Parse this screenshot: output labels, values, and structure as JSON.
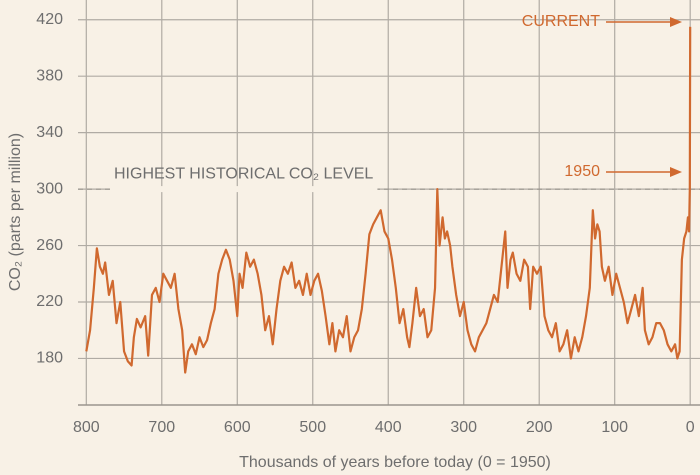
{
  "chart_data": {
    "type": "line",
    "y_label": "CO₂ (parts per million)",
    "x_label": "Thousands of years before today (0 = 1950)",
    "annotations": [
      "CURRENT",
      "1950",
      "HIGHEST HISTORICAL CO₂ LEVEL"
    ],
    "reference_line": 300,
    "xlim": [
      811,
      -13
    ],
    "ylim": [
      147,
      434
    ],
    "xticks": [
      800,
      700,
      600,
      500,
      400,
      300,
      200,
      100,
      0
    ],
    "yticks": [
      180,
      220,
      260,
      300,
      340,
      380,
      420
    ],
    "grid": true,
    "x": [
      800,
      795,
      790,
      786,
      782,
      778,
      775,
      770,
      765,
      760,
      755,
      750,
      745,
      740,
      737,
      733,
      728,
      722,
      718,
      713,
      708,
      703,
      698,
      693,
      688,
      683,
      678,
      673,
      669,
      665,
      660,
      655,
      650,
      645,
      640,
      635,
      630,
      625,
      620,
      615,
      610,
      605,
      600,
      597,
      593,
      588,
      583,
      578,
      573,
      568,
      563,
      558,
      553,
      548,
      543,
      538,
      533,
      528,
      523,
      518,
      513,
      508,
      503,
      498,
      493,
      488,
      483,
      478,
      474,
      470,
      465,
      460,
      455,
      450,
      445,
      440,
      435,
      430,
      425,
      420,
      415,
      410,
      405,
      400,
      395,
      390,
      385,
      380,
      375,
      372,
      368,
      363,
      358,
      353,
      348,
      343,
      338,
      335,
      332,
      328,
      325,
      322,
      318,
      315,
      310,
      305,
      300,
      295,
      290,
      285,
      280,
      275,
      270,
      265,
      260,
      255,
      250,
      245,
      242,
      238,
      235,
      230,
      225,
      220,
      215,
      212,
      208,
      203,
      198,
      193,
      188,
      183,
      178,
      173,
      168,
      163,
      158,
      153,
      148,
      143,
      138,
      133,
      129,
      126,
      123,
      120,
      117,
      113,
      108,
      103,
      98,
      93,
      88,
      83,
      78,
      73,
      68,
      63,
      60,
      55,
      50,
      45,
      40,
      35,
      30,
      25,
      20,
      17,
      14,
      11,
      8,
      5,
      3,
      1.5,
      1,
      0.5,
      0
    ],
    "series": [
      {
        "name": "CO₂",
        "color": "#d0692f",
        "values": [
          185,
          200,
          230,
          258,
          245,
          240,
          248,
          225,
          235,
          205,
          220,
          185,
          178,
          175,
          195,
          208,
          202,
          210,
          182,
          225,
          230,
          220,
          240,
          235,
          230,
          240,
          215,
          200,
          170,
          185,
          190,
          183,
          195,
          188,
          193,
          205,
          215,
          240,
          250,
          257,
          250,
          235,
          210,
          240,
          230,
          255,
          245,
          250,
          240,
          225,
          200,
          210,
          190,
          215,
          235,
          245,
          240,
          248,
          230,
          235,
          225,
          240,
          225,
          235,
          240,
          228,
          210,
          190,
          205,
          185,
          200,
          195,
          210,
          185,
          195,
          200,
          215,
          240,
          268,
          275,
          280,
          285,
          270,
          265,
          250,
          230,
          205,
          215,
          195,
          188,
          205,
          230,
          210,
          215,
          195,
          200,
          230,
          300,
          260,
          280,
          265,
          270,
          260,
          245,
          225,
          210,
          220,
          200,
          190,
          185,
          195,
          200,
          205,
          215,
          225,
          220,
          245,
          270,
          230,
          250,
          255,
          240,
          235,
          250,
          245,
          215,
          245,
          240,
          245,
          210,
          200,
          195,
          205,
          185,
          190,
          200,
          180,
          195,
          185,
          195,
          210,
          230,
          285,
          265,
          275,
          270,
          245,
          235,
          245,
          225,
          240,
          230,
          220,
          205,
          215,
          225,
          210,
          230,
          200,
          190,
          195,
          205,
          205,
          200,
          190,
          185,
          190,
          180,
          185,
          250,
          265,
          270,
          280,
          270,
          285,
          300,
          415
        ]
      }
    ]
  }
}
